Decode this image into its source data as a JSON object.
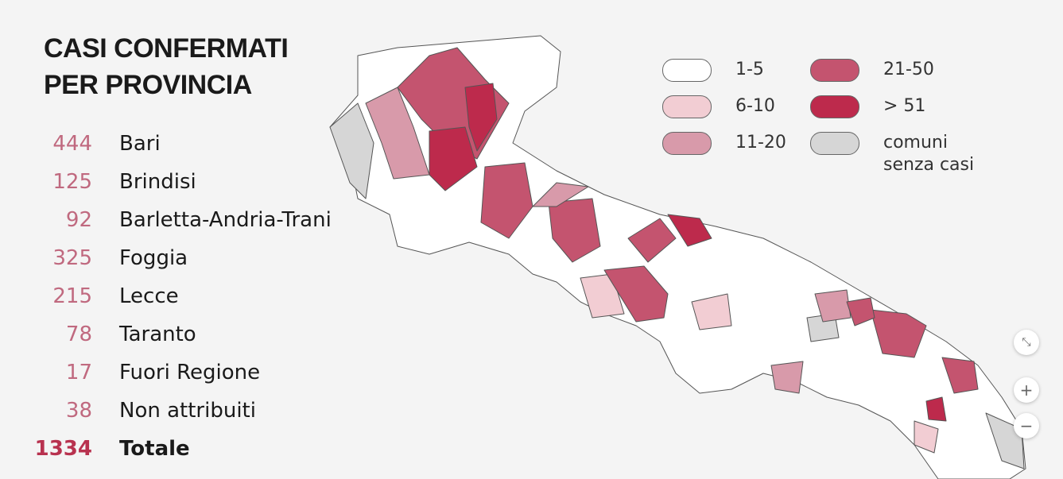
{
  "title": "CASI CONFERMATI PER PROVINCIA",
  "provinces": [
    {
      "count": 444,
      "name": "Bari"
    },
    {
      "count": 125,
      "name": "Brindisi"
    },
    {
      "count": 92,
      "name": "Barletta-Andria-Trani"
    },
    {
      "count": 325,
      "name": "Foggia"
    },
    {
      "count": 215,
      "name": "Lecce"
    },
    {
      "count": 78,
      "name": "Taranto"
    },
    {
      "count": 17,
      "name": "Fuori Regione"
    },
    {
      "count": 38,
      "name": "Non attribuiti"
    }
  ],
  "total": {
    "count": 1334,
    "name": "Totale"
  },
  "legend": [
    {
      "label": "1-5",
      "color": "#ffffff"
    },
    {
      "label": "6-10",
      "color": "#f2cdd3"
    },
    {
      "label": "11-20",
      "color": "#d89aaa"
    },
    {
      "label": "21-50",
      "color": "#c4546f"
    },
    {
      "label": "> 51",
      "color": "#bd2a4c"
    },
    {
      "label": "comuni senza casi",
      "color": "#d6d6d6"
    }
  ]
}
